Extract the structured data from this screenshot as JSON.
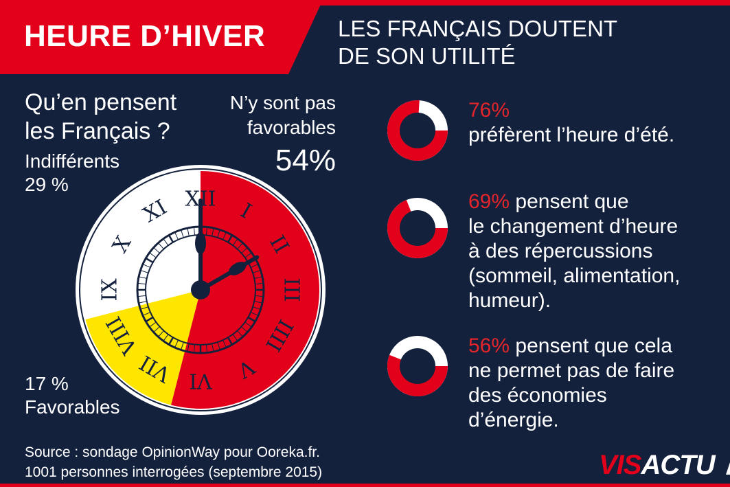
{
  "header": {
    "title": "HEURE D’HIVER",
    "subtitle_lines": [
      "LES FRANÇAIS DOUTENT",
      "DE SON UTILITÉ"
    ]
  },
  "clock_section": {
    "question_lines": [
      "Qu’en pensent",
      "les Français ?"
    ],
    "indifferents_label": "Indifférents",
    "indifferents_value": "29 %",
    "non_favorables_lines": [
      "N’y sont pas",
      "favorables"
    ],
    "non_favorables_value": "54%",
    "favorables_value": "17 %",
    "favorables_label": "Favorables",
    "roman_numerals": [
      "XII",
      "I",
      "II",
      "III",
      "IIII",
      "V",
      "VI",
      "VII",
      "VIII",
      "IX",
      "X",
      "XI"
    ]
  },
  "stats": [
    {
      "pct": "76%",
      "lines": [
        "préfèrent l’heure d’été."
      ]
    },
    {
      "pct": "69%",
      "first_rest": "pensent que",
      "lines": [
        "le changement d’heure",
        "à des répercussions",
        "(sommeil, alimentation,",
        "humeur)."
      ]
    },
    {
      "pct": "56%",
      "first_rest": "pensent que cela",
      "lines": [
        "ne permet pas de faire",
        "des économies",
        "d’énergie."
      ]
    }
  ],
  "source_lines": [
    "Source : sondage OpinionWay pour Ooreka.fr.",
    "1001 personnes interrogées (septembre 2015)"
  ],
  "logo": {
    "part1": "VIS",
    "part2": "ACTU"
  },
  "colors": {
    "background": "#14213d",
    "red": "#e2001a",
    "yellow": "#ffe600",
    "white": "#ffffff",
    "pct_red": "#e2252b"
  },
  "chart_data": [
    {
      "type": "pie",
      "title": "Qu’en pensent les Français ?",
      "categories": [
        "N’y sont pas favorables",
        "Favorables",
        "Indifférents"
      ],
      "values": [
        54,
        17,
        29
      ],
      "unit": "%",
      "colors": [
        "#e2001a",
        "#ffe600",
        "#ffffff"
      ]
    },
    {
      "type": "pie",
      "categories": [
        "préfèrent l’heure d’été",
        "autres"
      ],
      "values": [
        76,
        24
      ],
      "unit": "%"
    },
    {
      "type": "pie",
      "categories": [
        "pensent que le changement d’heure à des répercussions",
        "autres"
      ],
      "values": [
        69,
        31
      ],
      "unit": "%"
    },
    {
      "type": "pie",
      "categories": [
        "pensent que cela ne permet pas de faire des économies d’énergie",
        "autres"
      ],
      "values": [
        56,
        44
      ],
      "unit": "%"
    }
  ]
}
